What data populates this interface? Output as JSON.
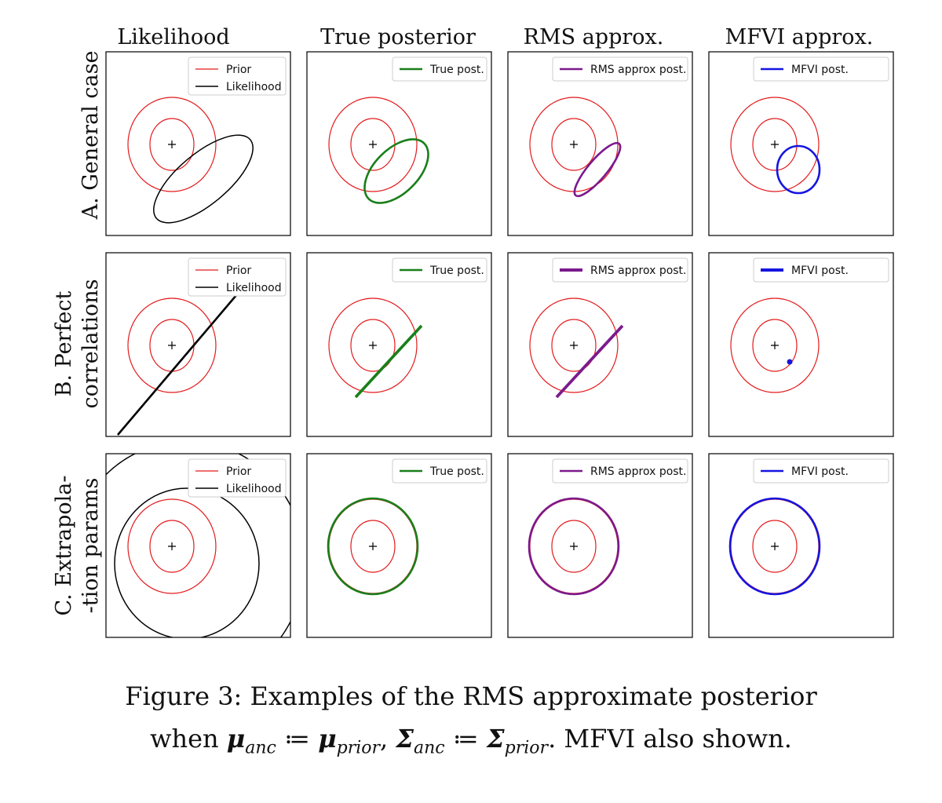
{
  "figure": {
    "column_titles": [
      "Likelihood",
      "True posterior",
      "RMS approx.",
      "MFVI approx."
    ],
    "row_titles": [
      [
        "A. General case"
      ],
      [
        "B. Perfect",
        "correlations"
      ],
      [
        "C. Extrapola-",
        "-tion params"
      ]
    ],
    "legends": [
      [
        [
          "Prior",
          "Likelihood"
        ],
        [
          "True post."
        ],
        [
          "RMS approx post."
        ],
        [
          "MFVI post."
        ]
      ],
      [
        [
          "Prior",
          "Likelihood"
        ],
        [
          "True post."
        ],
        [
          "RMS approx post."
        ],
        [
          "MFVI post."
        ]
      ],
      [
        [
          "Prior",
          "Likelihood"
        ],
        [
          "True post."
        ],
        [
          "RMS approx post."
        ],
        [
          "MFVI post."
        ]
      ]
    ],
    "colors": {
      "prior": "#e31a1c",
      "likelihood": "#000000",
      "true_post": "#1a7f1a",
      "rms": "#7b1a8c",
      "mfvi": "#1515e0"
    }
  },
  "caption": {
    "line1": "Figure 3: Examples of the RMS approximate posterior",
    "line2_prefix": "when ",
    "mu": "μ",
    "anc": "anc",
    "assign": " ≔ ",
    "prior": "prior",
    "comma": ", ",
    "Sigma": "Σ",
    "line2_suffix": ". MFVI also shown."
  }
}
